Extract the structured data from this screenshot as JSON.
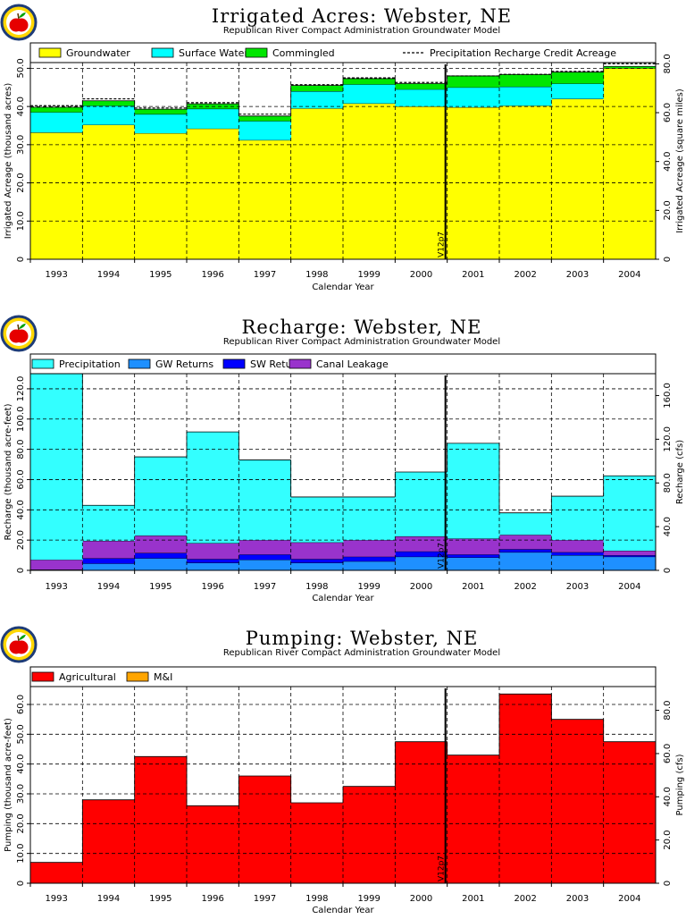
{
  "logo": {
    "icon": "apple-logo-icon"
  },
  "chart_data": [
    {
      "type": "area",
      "title": "Irrigated Acres: Webster, NE",
      "subtitle": "Republican River Compact Administration Groundwater Model",
      "xlabel": "Calendar Year",
      "ylabel": "Irrigated Acreage (thousand acres)",
      "ylabel_right": "Irrigated Acreage (square miles)",
      "categories": [
        "1993",
        "1994",
        "1995",
        "1996",
        "1997",
        "1998",
        "1999",
        "2000",
        "2001",
        "2002",
        "2003",
        "2004"
      ],
      "ylim": [
        0,
        51.5
      ],
      "yticks": [
        0,
        10.0,
        20.0,
        30.0,
        40.0,
        50.0
      ],
      "ylim_right": [
        0,
        80.5
      ],
      "yticks_right": [
        0,
        20.0,
        40.0,
        60.0,
        80.0
      ],
      "stacked": true,
      "series": [
        {
          "name": "Groundwater",
          "color": "#ffff00",
          "values": [
            33.2,
            35.2,
            33.0,
            34.2,
            31.2,
            39.5,
            40.8,
            40.0,
            39.8,
            40.2,
            42.0,
            50.0
          ]
        },
        {
          "name": "Surface Water",
          "color": "#00ffff",
          "values": [
            5.3,
            5.0,
            5.0,
            5.2,
            5.0,
            4.5,
            5.0,
            4.5,
            5.2,
            5.0,
            4.0,
            0.0
          ]
        },
        {
          "name": "Commingled",
          "color": "#00e600",
          "values": [
            1.3,
            1.3,
            1.3,
            1.3,
            1.3,
            1.5,
            1.5,
            1.5,
            3.0,
            3.2,
            3.0,
            0.5
          ]
        }
      ],
      "precip_line": {
        "name": "Precipitation Recharge Credit Acreage",
        "values": [
          40.2,
          42.0,
          39.6,
          41.0,
          38.0,
          45.7,
          47.5,
          46.3,
          48.0,
          48.4,
          49.2,
          51.2
        ]
      },
      "marker": {
        "label": "V12p7",
        "position": "between 2000 and 2001"
      },
      "grid": true,
      "legend": "top"
    },
    {
      "type": "area",
      "title": "Recharge: Webster, NE",
      "subtitle": "Republican River Compact Administration Groundwater Model",
      "xlabel": "Calendar Year",
      "ylabel": "Recharge (thousand acre-feet)",
      "ylabel_right": "Recharge (cfs)",
      "categories": [
        "1993",
        "1994",
        "1995",
        "1996",
        "1997",
        "1998",
        "1999",
        "2000",
        "2001",
        "2002",
        "2003",
        "2004"
      ],
      "ylim": [
        0,
        130
      ],
      "yticks": [
        0,
        20.0,
        40.0,
        60.0,
        80.0,
        100.0,
        120.0
      ],
      "ylim_right": [
        0,
        180
      ],
      "yticks_right": [
        0,
        40.0,
        80.0,
        120.0,
        160.0
      ],
      "stacked": true,
      "series": [
        {
          "name": "GW Returns",
          "color": "#1e90ff",
          "values": [
            0.5,
            4.5,
            8.0,
            5.0,
            7.0,
            5.0,
            6.0,
            9.0,
            8.5,
            12.0,
            10.0,
            9.0
          ]
        },
        {
          "name": "SW Returns",
          "color": "#0000ff",
          "values": [
            0.0,
            3.5,
            3.5,
            2.5,
            3.5,
            2.5,
            3.0,
            3.5,
            2.0,
            2.0,
            2.0,
            1.0
          ]
        },
        {
          "name": "Canal Leakage",
          "color": "#9933cc",
          "values": [
            6.5,
            11.5,
            11.5,
            10.5,
            9.5,
            11.0,
            11.0,
            10.0,
            10.5,
            9.5,
            8.0,
            3.0
          ]
        },
        {
          "name": "Precipitation",
          "color": "#33ffff",
          "values": [
            123.0,
            23.5,
            52.0,
            73.5,
            53.0,
            30.0,
            28.5,
            42.5,
            63.0,
            14.5,
            29.0,
            49.5
          ]
        }
      ],
      "legend_order": [
        "Precipitation",
        "GW Returns",
        "SW Returns",
        "Canal Leakage"
      ],
      "marker": {
        "label": "V12p7",
        "position": "between 2000 and 2001"
      },
      "grid": true,
      "legend": "top"
    },
    {
      "type": "area",
      "title": "Pumping: Webster, NE",
      "subtitle": "Republican River Compact Administration Groundwater Model",
      "xlabel": "Calendar Year",
      "ylabel": "Pumping (thousand acre-feet)",
      "ylabel_right": "Pumping (cfs)",
      "categories": [
        "1993",
        "1994",
        "1995",
        "1996",
        "1997",
        "1998",
        "1999",
        "2000",
        "2001",
        "2002",
        "2003",
        "2004"
      ],
      "ylim": [
        0,
        66
      ],
      "yticks": [
        0,
        10.0,
        20.0,
        30.0,
        40.0,
        50.0,
        60.0
      ],
      "ylim_right": [
        0,
        91
      ],
      "yticks_right": [
        0,
        20.0,
        40.0,
        60.0,
        80.0
      ],
      "stacked": true,
      "series": [
        {
          "name": "Agricultural",
          "color": "#ff0000",
          "values": [
            7.0,
            28.0,
            42.5,
            26.0,
            36.0,
            27.0,
            32.5,
            47.5,
            43.0,
            63.5,
            55.0,
            47.5
          ]
        },
        {
          "name": "M&I",
          "color": "#ffa500",
          "values": [
            0,
            0,
            0,
            0,
            0,
            0,
            0,
            0,
            0,
            0,
            0,
            0
          ]
        }
      ],
      "marker": {
        "label": "V12p7",
        "position": "between 2000 and 2001"
      },
      "grid": true,
      "legend": "top"
    }
  ]
}
